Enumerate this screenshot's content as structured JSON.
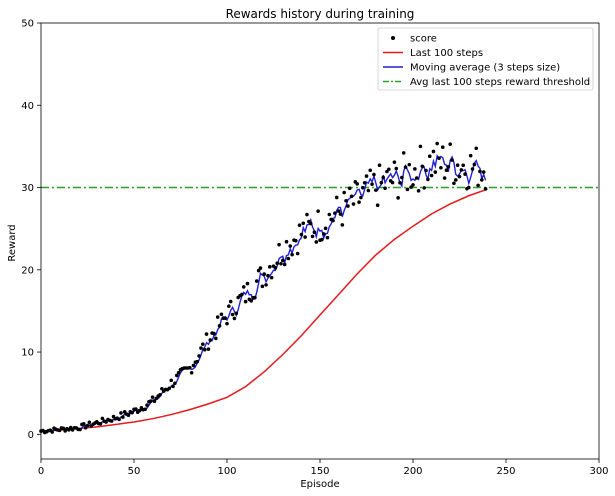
{
  "chart_data": {
    "type": "line",
    "title": "Rewards history during training",
    "xlabel": "Episode",
    "ylabel": "Reward",
    "xlim": [
      0,
      300
    ],
    "ylim": [
      -3,
      50
    ],
    "xticks": [
      0,
      50,
      100,
      150,
      200,
      250,
      300
    ],
    "yticks": [
      0,
      10,
      20,
      30,
      40,
      50
    ],
    "legend_position": "top-right",
    "threshold": 30,
    "colors": {
      "score": "#000000",
      "last100": "#e41a1c",
      "moving_avg": "#1f1fd6",
      "threshold": "#2ca02c"
    },
    "legend": [
      {
        "key": "score",
        "label": "score"
      },
      {
        "key": "last100",
        "label": "Last 100 steps"
      },
      {
        "key": "moving_avg",
        "label": "Moving average (3 steps size)"
      },
      {
        "key": "threshold",
        "label": "Avg last 100 steps reward threshold"
      }
    ],
    "score_keypoints": [
      [
        0,
        0.4
      ],
      [
        20,
        0.8
      ],
      [
        40,
        2.0
      ],
      [
        50,
        2.8
      ],
      [
        60,
        4.0
      ],
      [
        70,
        6.2
      ],
      [
        80,
        8.0
      ],
      [
        90,
        11.5
      ],
      [
        100,
        14.5
      ],
      [
        110,
        17.0
      ],
      [
        120,
        19.5
      ],
      [
        130,
        22.5
      ],
      [
        140,
        24.5
      ],
      [
        150,
        25.5
      ],
      [
        160,
        27.0
      ],
      [
        170,
        28.5
      ],
      [
        180,
        30.0
      ],
      [
        190,
        31.0
      ],
      [
        200,
        32.0
      ],
      [
        210,
        33.0
      ],
      [
        220,
        33.0
      ],
      [
        230,
        32.5
      ],
      [
        239,
        32.5
      ]
    ],
    "last100": {
      "x": [
        0,
        10,
        20,
        30,
        40,
        50,
        60,
        70,
        80,
        90,
        100,
        110,
        120,
        130,
        140,
        150,
        160,
        170,
        180,
        190,
        200,
        210,
        220,
        230,
        240
      ],
      "y": [
        0.4,
        0.5,
        0.7,
        0.9,
        1.2,
        1.5,
        1.9,
        2.4,
        3.0,
        3.7,
        4.5,
        5.8,
        7.6,
        9.7,
        12.0,
        14.5,
        17.0,
        19.5,
        21.8,
        23.7,
        25.3,
        26.8,
        28.0,
        29.0,
        29.8
      ]
    },
    "threshold_label": "Avg last 100 steps reward threshold"
  }
}
